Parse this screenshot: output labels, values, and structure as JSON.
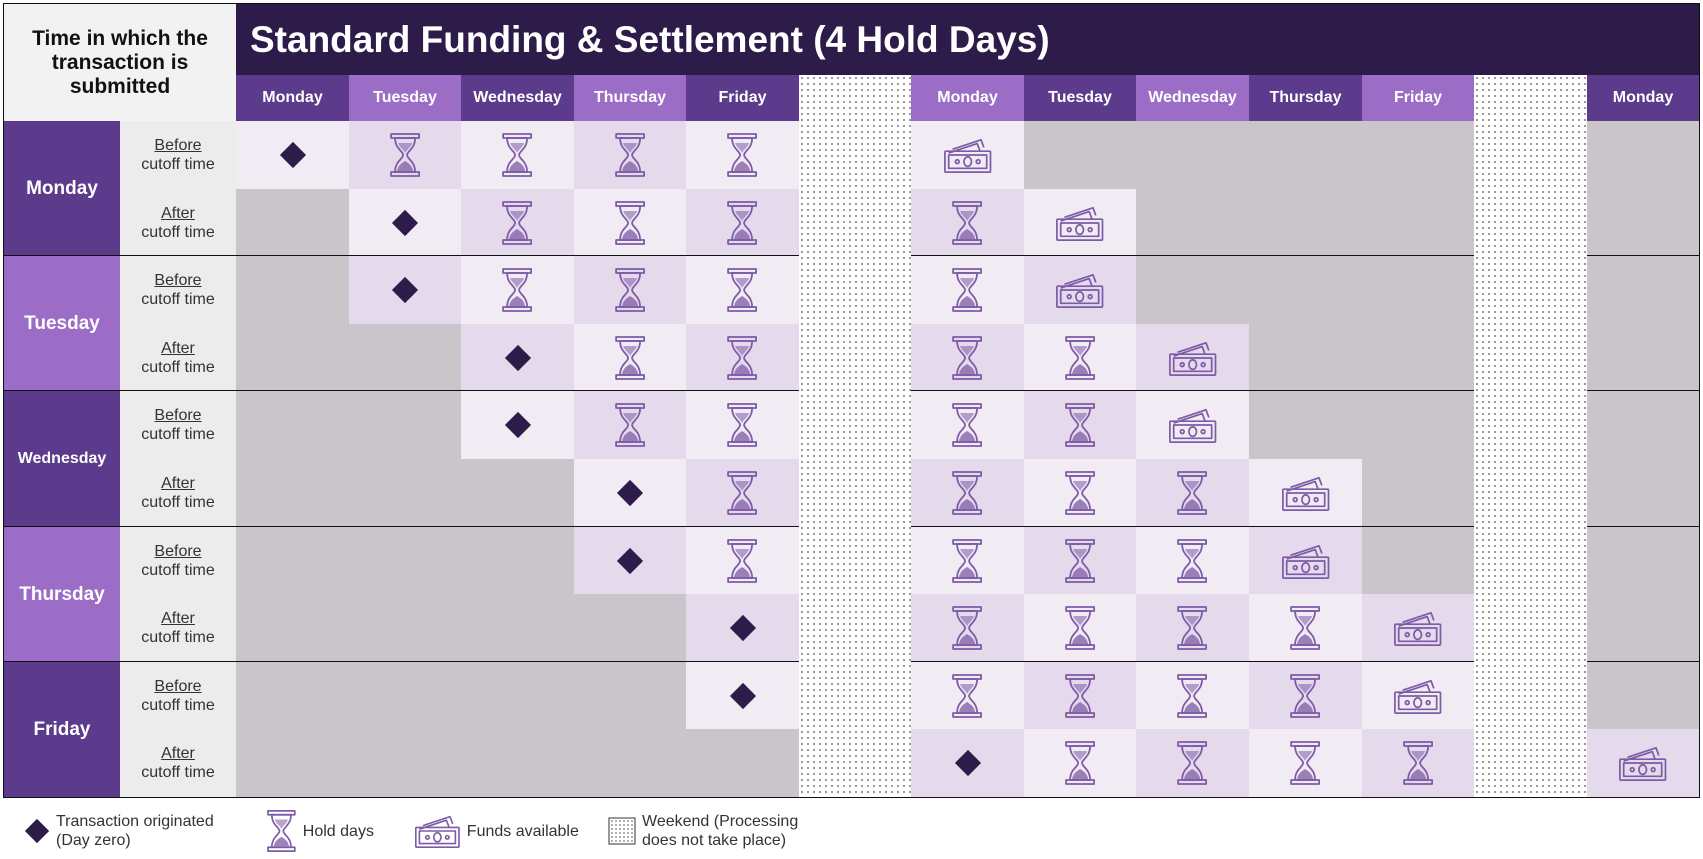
{
  "corner_label": "Time in which the transaction is submitted",
  "title": "Standard Funding & Settlement (4 Hold Days)",
  "columns": [
    {
      "label": "Monday",
      "type": "day"
    },
    {
      "label": "Tuesday",
      "type": "day"
    },
    {
      "label": "Wednesday",
      "type": "day"
    },
    {
      "label": "Thursday",
      "type": "day"
    },
    {
      "label": "Friday",
      "type": "day"
    },
    {
      "label": "",
      "type": "weekend"
    },
    {
      "label": "Monday",
      "type": "day"
    },
    {
      "label": "Tuesday",
      "type": "day"
    },
    {
      "label": "Wednesday",
      "type": "day"
    },
    {
      "label": "Thursday",
      "type": "day"
    },
    {
      "label": "Friday",
      "type": "day"
    },
    {
      "label": "",
      "type": "weekend"
    },
    {
      "label": "Monday",
      "type": "day"
    }
  ],
  "days": [
    {
      "label": "Monday",
      "rows": [
        {
          "word": "Before",
          "rest": "cutoff time",
          "cells": [
            "O",
            "H",
            "H",
            "H",
            "H",
            "W",
            "F",
            "",
            "",
            "",
            "",
            "W",
            ""
          ]
        },
        {
          "word": "After",
          "rest": "cutoff time",
          "cells": [
            "",
            "O",
            "H",
            "H",
            "H",
            "W",
            "H",
            "F",
            "",
            "",
            "",
            "W",
            ""
          ]
        }
      ]
    },
    {
      "label": "Tuesday",
      "rows": [
        {
          "word": "Before",
          "rest": "cutoff time",
          "cells": [
            "",
            "O",
            "H",
            "H",
            "H",
            "W",
            "H",
            "F",
            "",
            "",
            "",
            "W",
            ""
          ]
        },
        {
          "word": "After",
          "rest": "cutoff time",
          "cells": [
            "",
            "",
            "O",
            "H",
            "H",
            "W",
            "H",
            "H",
            "F",
            "",
            "",
            "W",
            ""
          ]
        }
      ]
    },
    {
      "label": "Wednesday",
      "rows": [
        {
          "word": "Before",
          "rest": "cutoff time",
          "cells": [
            "",
            "",
            "O",
            "H",
            "H",
            "W",
            "H",
            "H",
            "F",
            "",
            "",
            "W",
            ""
          ]
        },
        {
          "word": "After",
          "rest": "cutoff time",
          "cells": [
            "",
            "",
            "",
            "O",
            "H",
            "W",
            "H",
            "H",
            "H",
            "F",
            "",
            "W",
            ""
          ]
        }
      ]
    },
    {
      "label": "Thursday",
      "rows": [
        {
          "word": "Before",
          "rest": "cutoff time",
          "cells": [
            "",
            "",
            "",
            "O",
            "H",
            "W",
            "H",
            "H",
            "H",
            "F",
            "",
            "W",
            ""
          ]
        },
        {
          "word": "After",
          "rest": "cutoff time",
          "cells": [
            "",
            "",
            "",
            "",
            "O",
            "W",
            "H",
            "H",
            "H",
            "H",
            "F",
            "W",
            ""
          ]
        }
      ]
    },
    {
      "label": "Friday",
      "rows": [
        {
          "word": "Before",
          "rest": "cutoff time",
          "cells": [
            "",
            "",
            "",
            "",
            "O",
            "W",
            "H",
            "H",
            "H",
            "H",
            "F",
            "W",
            ""
          ]
        },
        {
          "word": "After",
          "rest": "cutoff time",
          "cells": [
            "",
            "",
            "",
            "",
            "",
            "W",
            "O",
            "H",
            "H",
            "H",
            "H",
            "W",
            "F"
          ]
        }
      ]
    }
  ],
  "legend": [
    {
      "icon": "diamond-icon",
      "text": "Transaction originated (Day zero)"
    },
    {
      "icon": "hourglass-icon",
      "text": "Hold days"
    },
    {
      "icon": "money-icon",
      "text": "Funds available"
    },
    {
      "icon": "dotted-square-icon",
      "text": "Weekend (Processing does not take place)"
    }
  ],
  "colors": {
    "dark_purple": "#2d1b4a",
    "mid_purple": "#5c3a8c",
    "light_purple": "#9b6dc6",
    "hold_light": "#f1ecf4",
    "hold_dark": "#e5d9ec",
    "inactive": "#c9c5cb",
    "icon_stroke": "#7d5ba6",
    "diamond": "#2d1b4a"
  }
}
